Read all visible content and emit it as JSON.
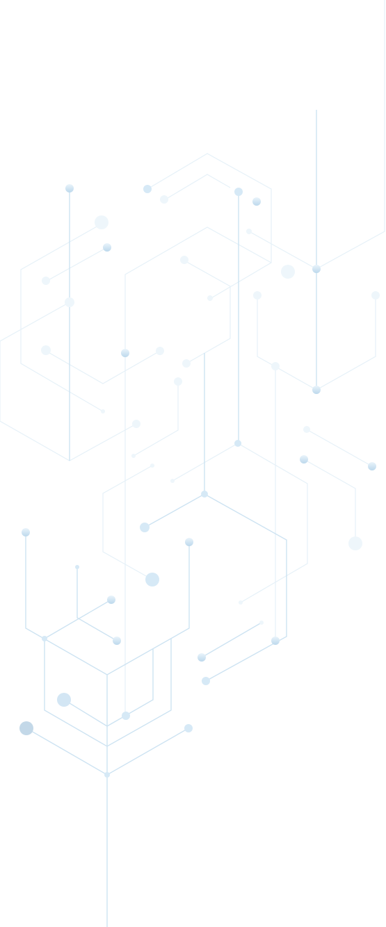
{
  "background_color": "#ffffff",
  "palette": {
    "line_strong": "#c9e1f0",
    "line_light": "#e6f1f8",
    "node_strong": "#c3dcee",
    "node_mid": "#d9eaf6",
    "node_light": "#edf5fb",
    "node_dark": "#b3cde0"
  }
}
